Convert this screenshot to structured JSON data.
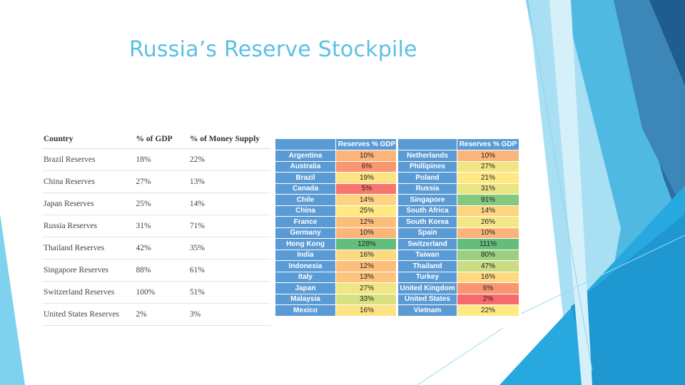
{
  "slide": {
    "title": "Russia’s Reserve Stockpile"
  },
  "left_table": {
    "headers": [
      "Country",
      "% of GDP",
      "% of Money Supply"
    ],
    "rows": [
      [
        "Brazil Reserves",
        "18%",
        "22%"
      ],
      [
        "China Reserves",
        "27%",
        "13%"
      ],
      [
        "Japan Reserves",
        "25%",
        "14%"
      ],
      [
        "Russia Reserves",
        "31%",
        "71%"
      ],
      [
        "Thailand Reserves",
        "42%",
        "35%"
      ],
      [
        "Singapore Reserves",
        "88%",
        "61%"
      ],
      [
        "Switzerland Reserves",
        "100%",
        "51%"
      ],
      [
        "United States Reserves",
        "2%",
        "3%"
      ]
    ]
  },
  "right_tables": [
    {
      "header": "Reserves % GDP",
      "rows": [
        {
          "country": "Argentina",
          "value": "10%",
          "color": "#fbb57a"
        },
        {
          "country": "Australia",
          "value": "6%",
          "color": "#f8966f"
        },
        {
          "country": "Brazil",
          "value": "19%",
          "color": "#fde383"
        },
        {
          "country": "Canada",
          "value": "5%",
          "color": "#f8766d"
        },
        {
          "country": "Chile",
          "value": "14%",
          "color": "#fed480"
        },
        {
          "country": "China",
          "value": "25%",
          "color": "#fee983"
        },
        {
          "country": "France",
          "value": "12%",
          "color": "#fcbf7b"
        },
        {
          "country": "Germany",
          "value": "10%",
          "color": "#fbb57a"
        },
        {
          "country": "Hong Kong",
          "value": "128%",
          "color": "#63be7b"
        },
        {
          "country": "India",
          "value": "16%",
          "color": "#fdd981"
        },
        {
          "country": "Indonesia",
          "value": "12%",
          "color": "#fcbf7b"
        },
        {
          "country": "Italy",
          "value": "13%",
          "color": "#fcc47c"
        },
        {
          "country": "Japan",
          "value": "27%",
          "color": "#f0e784"
        },
        {
          "country": "Malaysia",
          "value": "33%",
          "color": "#d8e082"
        },
        {
          "country": "Mexico",
          "value": "16%",
          "color": "#fde383"
        }
      ]
    },
    {
      "header": "Reserves % GDP",
      "rows": [
        {
          "country": "Netherlands",
          "value": "10%",
          "color": "#fbb57a"
        },
        {
          "country": "Phillipines",
          "value": "27%",
          "color": "#f0e784"
        },
        {
          "country": "Poland",
          "value": "21%",
          "color": "#fee983"
        },
        {
          "country": "Russia",
          "value": "31%",
          "color": "#eae583"
        },
        {
          "country": "Singapore",
          "value": "91%",
          "color": "#85c87d"
        },
        {
          "country": "South Africa",
          "value": "14%",
          "color": "#fed480"
        },
        {
          "country": "South Korea",
          "value": "26%",
          "color": "#f5e884"
        },
        {
          "country": "Spain",
          "value": "10%",
          "color": "#fbb57a"
        },
        {
          "country": "Switzerland",
          "value": "111%",
          "color": "#63be7b"
        },
        {
          "country": "Taiwan",
          "value": "80%",
          "color": "#9bcf7f"
        },
        {
          "country": "Thailand",
          "value": "47%",
          "color": "#c9dc81"
        },
        {
          "country": "Turkey",
          "value": "16%",
          "color": "#fdd981"
        },
        {
          "country": "United Kingdom",
          "value": "6%",
          "color": "#f8966f"
        },
        {
          "country": "United States",
          "value": "2%",
          "color": "#f8696b"
        },
        {
          "country": "Vietnam",
          "value": "22%",
          "color": "#fee983"
        }
      ]
    }
  ]
}
